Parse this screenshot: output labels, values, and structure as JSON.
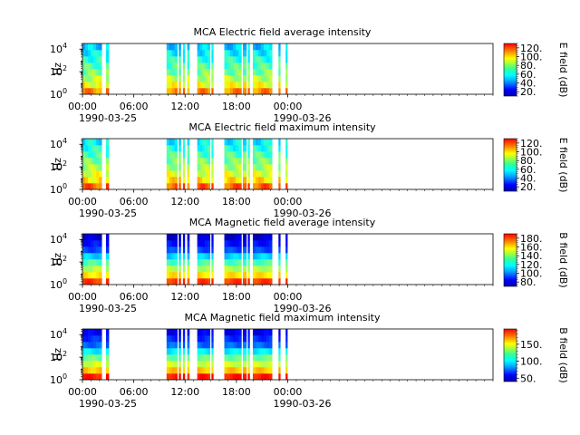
{
  "chart_data": [
    {
      "type": "heatmap",
      "title": "MCA  Electric field average intensity",
      "ylabel": "Hz",
      "yticks": [
        "10",
        "10",
        "10"
      ],
      "yexp": [
        "0",
        "2",
        "4"
      ],
      "xticks": [
        "00:00",
        "06:00",
        "12:00",
        "18:00",
        "00:00"
      ],
      "xdates": [
        "1990-03-25",
        "1990-03-26"
      ],
      "xlim": [
        "1990-03-25 00:00",
        "1990-03-27 00:00"
      ],
      "ylim": [
        1,
        31623
      ],
      "yscale": "log",
      "colorbar": {
        "label": "E field (dB)",
        "ticks": [
          "20.",
          "40.",
          "60.",
          "80.",
          "100.",
          "120."
        ],
        "range": [
          10,
          130
        ],
        "colormap": "jet"
      }
    },
    {
      "type": "heatmap",
      "title": "MCA  Electric field maximum intensity",
      "ylabel": "Hz",
      "yticks": [
        "10",
        "10",
        "10"
      ],
      "yexp": [
        "0",
        "2",
        "4"
      ],
      "xticks": [
        "00:00",
        "06:00",
        "12:00",
        "18:00",
        "00:00"
      ],
      "xdates": [
        "1990-03-25",
        "1990-03-26"
      ],
      "xlim": [
        "1990-03-25 00:00",
        "1990-03-27 00:00"
      ],
      "ylim": [
        1,
        31623
      ],
      "yscale": "log",
      "colorbar": {
        "label": "E field (dB)",
        "ticks": [
          "20.",
          "40.",
          "60.",
          "80.",
          "100.",
          "120."
        ],
        "range": [
          10,
          130
        ],
        "colormap": "jet"
      }
    },
    {
      "type": "heatmap",
      "title": "MCA  Magnetic field average intensity",
      "ylabel": "Hz",
      "yticks": [
        "10",
        "10",
        "10"
      ],
      "yexp": [
        "0",
        "2",
        "4"
      ],
      "xticks": [
        "00:00",
        "06:00",
        "12:00",
        "18:00",
        "00:00"
      ],
      "xdates": [
        "1990-03-25",
        "1990-03-26"
      ],
      "xlim": [
        "1990-03-25 00:00",
        "1990-03-27 00:00"
      ],
      "ylim": [
        1,
        31623
      ],
      "yscale": "log",
      "colorbar": {
        "label": "B field (dB)",
        "ticks": [
          "80.",
          "100.",
          "120.",
          "140.",
          "160.",
          "180."
        ],
        "range": [
          70,
          190
        ],
        "colormap": "jet"
      }
    },
    {
      "type": "heatmap",
      "title": "MCA  Magnetic field maximum intensity",
      "ylabel": "Hz",
      "yticks": [
        "10",
        "10",
        "10"
      ],
      "yexp": [
        "0",
        "2",
        "4"
      ],
      "xticks": [
        "00:00",
        "06:00",
        "12:00",
        "18:00",
        "00:00"
      ],
      "xdates": [
        "1990-03-25",
        "1990-03-26"
      ],
      "xlim": [
        "1990-03-25 00:00",
        "1990-03-27 00:00"
      ],
      "ylim": [
        1,
        31623
      ],
      "yscale": "log",
      "colorbar": {
        "label": "B field (dB)",
        "ticks": [
          "50.",
          "100.",
          "150."
        ],
        "range": [
          40,
          195
        ],
        "colormap": "jet"
      }
    }
  ],
  "data_segments_utc": [
    [
      "00:00",
      "02:15"
    ],
    [
      "02:45",
      "03:05"
    ],
    [
      "09:50",
      "11:05"
    ],
    [
      "11:15",
      "11:30"
    ],
    [
      "11:45",
      "11:55"
    ],
    [
      "12:15",
      "12:30"
    ],
    [
      "13:25",
      "14:55"
    ],
    [
      "15:05",
      "15:15"
    ],
    [
      "16:35",
      "18:35"
    ],
    [
      "18:45",
      "19:10"
    ],
    [
      "19:20",
      "19:25"
    ],
    [
      "19:55",
      "22:10"
    ],
    [
      "22:55",
      "23:05"
    ],
    [
      "23:45",
      "23:55"
    ]
  ]
}
